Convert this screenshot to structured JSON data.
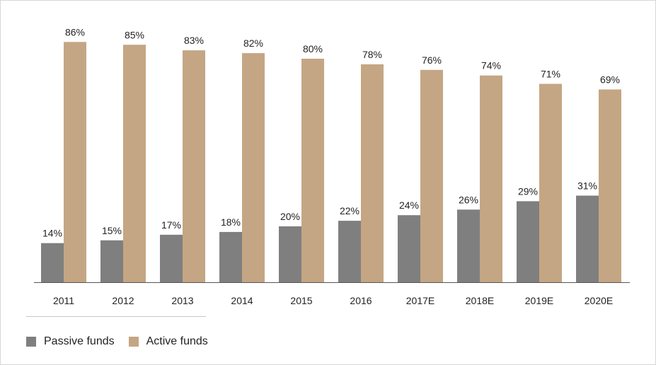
{
  "chart_data": {
    "type": "bar",
    "title": "",
    "xlabel": "",
    "ylabel": "",
    "ylim": [
      0,
      100
    ],
    "grid": false,
    "legend_position": "bottom-left",
    "categories": [
      "2011",
      "2012",
      "2013",
      "2014",
      "2015",
      "2016",
      "2017E",
      "2018E",
      "2019E",
      "2020E"
    ],
    "series": [
      {
        "name": "Passive funds",
        "color": "#7f7f7f",
        "values": [
          14,
          15,
          17,
          18,
          20,
          22,
          24,
          26,
          29,
          31
        ],
        "labels": [
          "14%",
          "15%",
          "17%",
          "18%",
          "20%",
          "22%",
          "24%",
          "26%",
          "29%",
          "31%"
        ]
      },
      {
        "name": "Active funds",
        "color": "#c4a684",
        "values": [
          86,
          85,
          83,
          82,
          80,
          78,
          76,
          74,
          71,
          69
        ],
        "labels": [
          "86%",
          "85%",
          "83%",
          "82%",
          "80%",
          "78%",
          "76%",
          "74%",
          "71%",
          "69%"
        ]
      }
    ]
  }
}
